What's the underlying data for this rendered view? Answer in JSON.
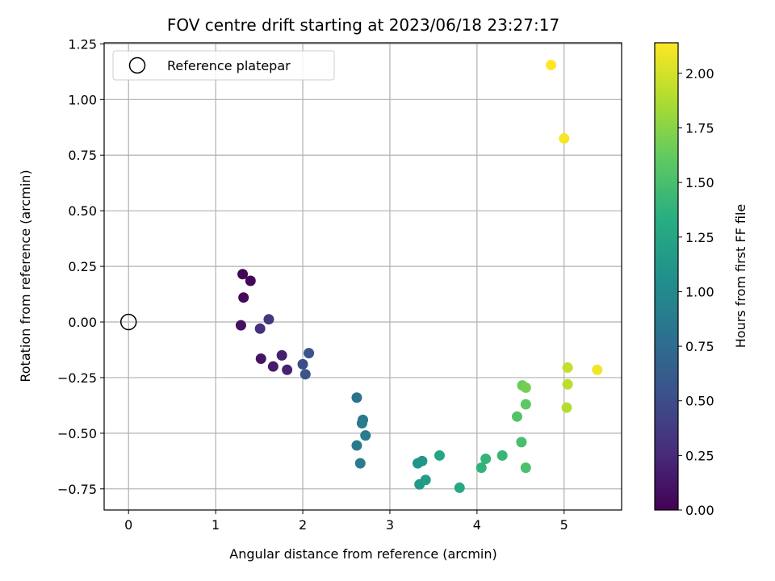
{
  "chart_data": {
    "type": "scatter",
    "title": "FOV centre drift starting at 2023/06/18 23:27:17",
    "xlabel": "Angular distance from reference (arcmin)",
    "ylabel": "Rotation from reference (arcmin)",
    "xlim": [
      -0.28,
      5.66
    ],
    "ylim": [
      -0.845,
      1.255
    ],
    "xticks": [
      "0",
      "1",
      "2",
      "3",
      "4",
      "5"
    ],
    "yticks": [
      "−0.75",
      "−0.50",
      "−0.25",
      "0.00",
      "0.25",
      "0.50",
      "0.75",
      "1.00",
      "1.25"
    ],
    "grid": true,
    "legend": {
      "placement": "top-left",
      "entries": [
        "Reference platepar"
      ]
    },
    "reference_point": {
      "x": 0.0,
      "y": 0.0
    },
    "colorbar": {
      "label": "Hours from first FF file",
      "range": [
        0.0,
        2.14
      ],
      "ticks": [
        "0.00",
        "0.25",
        "0.50",
        "0.75",
        "1.00",
        "1.25",
        "1.50",
        "1.75",
        "2.00"
      ],
      "colormap": "viridis"
    },
    "points": [
      {
        "x": 1.31,
        "y": 0.215,
        "t": 0.02
      },
      {
        "x": 1.4,
        "y": 0.185,
        "t": 0.04
      },
      {
        "x": 1.32,
        "y": 0.11,
        "t": 0.05
      },
      {
        "x": 1.29,
        "y": -0.015,
        "t": 0.1
      },
      {
        "x": 1.52,
        "y": -0.165,
        "t": 0.12
      },
      {
        "x": 1.66,
        "y": -0.2,
        "t": 0.16
      },
      {
        "x": 1.76,
        "y": -0.15,
        "t": 0.18
      },
      {
        "x": 1.82,
        "y": -0.215,
        "t": 0.2
      },
      {
        "x": 1.51,
        "y": -0.03,
        "t": 0.3
      },
      {
        "x": 1.61,
        "y": 0.012,
        "t": 0.35
      },
      {
        "x": 2.0,
        "y": -0.19,
        "t": 0.5
      },
      {
        "x": 2.07,
        "y": -0.14,
        "t": 0.55
      },
      {
        "x": 2.03,
        "y": -0.235,
        "t": 0.57
      },
      {
        "x": 2.62,
        "y": -0.34,
        "t": 0.8
      },
      {
        "x": 2.69,
        "y": -0.44,
        "t": 0.85
      },
      {
        "x": 2.68,
        "y": -0.455,
        "t": 0.87
      },
      {
        "x": 2.72,
        "y": -0.51,
        "t": 0.88
      },
      {
        "x": 2.62,
        "y": -0.555,
        "t": 0.86
      },
      {
        "x": 2.66,
        "y": -0.635,
        "t": 0.9
      },
      {
        "x": 3.32,
        "y": -0.635,
        "t": 1.1
      },
      {
        "x": 3.37,
        "y": -0.625,
        "t": 1.12
      },
      {
        "x": 3.34,
        "y": -0.73,
        "t": 1.15
      },
      {
        "x": 3.41,
        "y": -0.71,
        "t": 1.18
      },
      {
        "x": 3.57,
        "y": -0.6,
        "t": 1.25
      },
      {
        "x": 3.8,
        "y": -0.745,
        "t": 1.28
      },
      {
        "x": 4.05,
        "y": -0.655,
        "t": 1.38
      },
      {
        "x": 4.1,
        "y": -0.615,
        "t": 1.4
      },
      {
        "x": 4.29,
        "y": -0.6,
        "t": 1.42
      },
      {
        "x": 4.51,
        "y": -0.54,
        "t": 1.5
      },
      {
        "x": 4.56,
        "y": -0.655,
        "t": 1.52
      },
      {
        "x": 4.46,
        "y": -0.425,
        "t": 1.55
      },
      {
        "x": 4.56,
        "y": -0.37,
        "t": 1.6
      },
      {
        "x": 4.52,
        "y": -0.285,
        "t": 1.65
      },
      {
        "x": 4.56,
        "y": -0.295,
        "t": 1.68
      },
      {
        "x": 5.03,
        "y": -0.385,
        "t": 1.9
      },
      {
        "x": 5.04,
        "y": -0.28,
        "t": 1.92
      },
      {
        "x": 5.04,
        "y": -0.205,
        "t": 1.95
      },
      {
        "x": 5.38,
        "y": -0.215,
        "t": 2.1
      },
      {
        "x": 5.0,
        "y": 0.825,
        "t": 2.12
      },
      {
        "x": 4.85,
        "y": 1.155,
        "t": 2.14
      }
    ]
  }
}
